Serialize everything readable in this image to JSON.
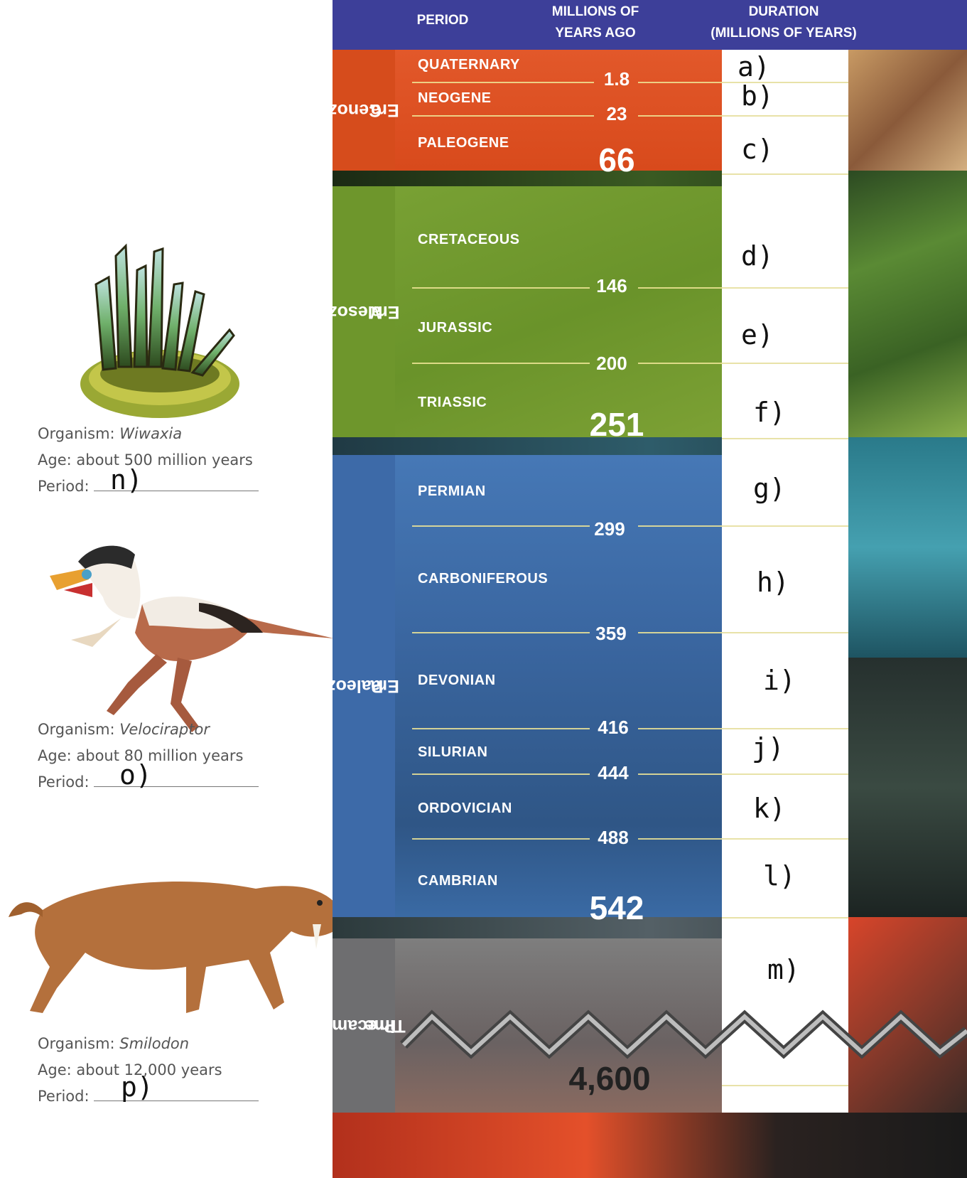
{
  "header": {
    "period": "PERIOD",
    "mya_line1": "MILLIONS OF",
    "mya_line2": "YEARS AGO",
    "duration_line1": "DURATION",
    "duration_line2": "(MILLIONS OF YEARS)"
  },
  "eras": [
    {
      "line1": "Cenozoic",
      "line2": "Era",
      "color": "#e05424"
    },
    {
      "line1": "Mesozoic",
      "line2": "Era",
      "color": "#6e9a2c"
    },
    {
      "line1": "Paleozoic",
      "line2": "Era",
      "color": "#3f6fae"
    },
    {
      "line1": "Precambrian",
      "line2": "Time",
      "color": "#7a7a7a"
    }
  ],
  "periods": [
    {
      "name": "QUATERNARY"
    },
    {
      "name": "NEOGENE"
    },
    {
      "name": "PALEOGENE"
    },
    {
      "name": "CRETACEOUS"
    },
    {
      "name": "JURASSIC"
    },
    {
      "name": "TRIASSIC"
    },
    {
      "name": "PERMIAN"
    },
    {
      "name": "CARBONIFEROUS"
    },
    {
      "name": "DEVONIAN"
    },
    {
      "name": "SILURIAN"
    },
    {
      "name": "ORDOVICIAN"
    },
    {
      "name": "CAMBRIAN"
    }
  ],
  "ticks": [
    "1.8",
    "23",
    "66",
    "146",
    "200",
    "251",
    "299",
    "359",
    "416",
    "444",
    "488",
    "542",
    "4,600"
  ],
  "duration_answers": [
    "a)",
    "b)",
    "c)",
    "d)",
    "e)",
    "f)",
    "g)",
    "h)",
    "i)",
    "j)",
    "k)",
    "l)",
    "m)"
  ],
  "organisms": [
    {
      "organism_label": "Organism:",
      "name": "Wiwaxia",
      "age": "Age: about 500 million years",
      "period_label": "Period:",
      "answer": "n)",
      "icon": "wiwaxia-illustration"
    },
    {
      "organism_label": "Organism:",
      "name": "Velociraptor",
      "age": "Age: about 80 million years",
      "period_label": "Period:",
      "answer": "o)",
      "icon": "velociraptor-illustration"
    },
    {
      "organism_label": "Organism:",
      "name": "Smilodon",
      "age": "Age: about 12,000 years",
      "period_label": "Period:",
      "answer": "p)",
      "icon": "smilodon-illustration"
    }
  ]
}
